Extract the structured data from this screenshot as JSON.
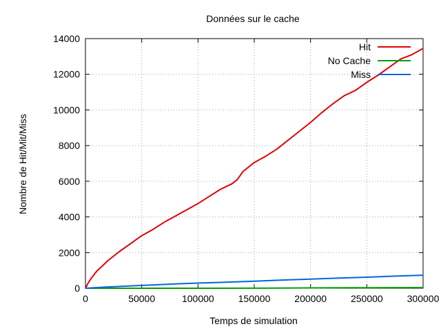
{
  "chart_data": {
    "type": "line",
    "title": "Données sur le cache",
    "xlabel": "Temps de simulation",
    "ylabel": "Nombre de Hit/Mit/Miss",
    "xlim": [
      0,
      300000
    ],
    "ylim": [
      0,
      14000
    ],
    "x_ticks": [
      0,
      50000,
      100000,
      150000,
      200000,
      250000,
      300000
    ],
    "y_ticks": [
      0,
      2000,
      4000,
      6000,
      8000,
      10000,
      12000,
      14000
    ],
    "x_tick_labels": [
      "0",
      "50000",
      "100000",
      "150000",
      "200000",
      "250000",
      "300000"
    ],
    "y_tick_labels": [
      "0",
      "2000",
      "4000",
      "6000",
      "8000",
      "10000",
      "12000",
      "14000"
    ],
    "grid": true,
    "legend_position": "top-right",
    "series": [
      {
        "name": "Hit",
        "color": "#e00000",
        "x": [
          0,
          2000,
          5000,
          10000,
          15000,
          20000,
          30000,
          40000,
          50000,
          60000,
          70000,
          80000,
          90000,
          100000,
          110000,
          120000,
          130000,
          135000,
          140000,
          150000,
          160000,
          170000,
          180000,
          190000,
          200000,
          210000,
          220000,
          230000,
          240000,
          250000,
          260000,
          270000,
          280000,
          290000,
          300000
        ],
        "y": [
          0,
          250,
          550,
          950,
          1250,
          1550,
          2050,
          2500,
          2950,
          3300,
          3700,
          4050,
          4400,
          4750,
          5150,
          5550,
          5850,
          6100,
          6550,
          7050,
          7400,
          7800,
          8300,
          8800,
          9300,
          9850,
          10350,
          10800,
          11100,
          11550,
          11950,
          12400,
          12850,
          13100,
          13450
        ]
      },
      {
        "name": "No Cache",
        "color": "#00a000",
        "x": [
          0,
          50000,
          100000,
          150000,
          170000,
          200000,
          250000,
          300000
        ],
        "y": [
          0,
          0,
          0,
          5,
          10,
          20,
          30,
          40
        ]
      },
      {
        "name": "Miss",
        "color": "#0066dd",
        "x": [
          0,
          10000,
          25000,
          50000,
          75000,
          100000,
          125000,
          150000,
          175000,
          200000,
          225000,
          250000,
          275000,
          300000
        ],
        "y": [
          0,
          40,
          90,
          160,
          230,
          290,
          340,
          400,
          460,
          510,
          570,
          620,
          680,
          730
        ]
      }
    ]
  }
}
